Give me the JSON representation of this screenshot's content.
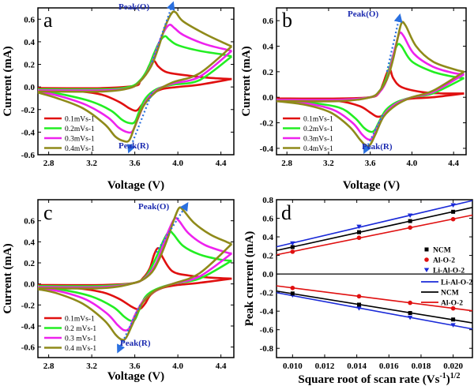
{
  "chart_data": [
    {
      "type": "line",
      "panel_label": "a",
      "xlabel": "Voltage (V)",
      "ylabel": "Current (mA)",
      "xlim": [
        2.7,
        4.52
      ],
      "ylim": [
        -0.6,
        0.7
      ],
      "xticks": [
        "2.8",
        "3.2",
        "3.6",
        "4.0",
        "4.4"
      ],
      "yticks": [
        "-0.6",
        "-0.4",
        "-0.2",
        "0.0",
        "0.2",
        "0.4",
        "0.6"
      ],
      "legend_position": "bottom-left",
      "annotations": [
        "Peak(O)",
        "Peak(R)"
      ],
      "peak_o_arrow": [
        [
          3.76,
          0.22
        ],
        [
          3.95,
          0.73
        ]
      ],
      "peak_r_arrow": [
        [
          3.76,
          -0.05
        ],
        [
          3.55,
          -0.56
        ]
      ],
      "series": [
        {
          "name": "0.1mVs-1",
          "color": "#e01010",
          "ox": [
            2.7,
            3.3,
            3.6,
            3.65,
            3.7,
            3.74,
            3.78,
            3.82,
            3.9,
            4.1,
            4.3,
            4.5
          ],
          "oy": [
            -0.01,
            -0.01,
            0.01,
            0.05,
            0.12,
            0.2,
            0.23,
            0.18,
            0.13,
            0.1,
            0.08,
            0.07
          ],
          "rx": [
            4.5,
            4.2,
            4.0,
            3.85,
            3.75,
            3.68,
            3.63,
            3.6,
            3.55,
            3.45,
            3.3,
            3.1,
            2.7
          ],
          "ry": [
            0.07,
            0.02,
            0.0,
            -0.02,
            -0.07,
            -0.14,
            -0.2,
            -0.21,
            -0.19,
            -0.13,
            -0.07,
            -0.04,
            -0.02
          ]
        },
        {
          "name": "0.2mVs-1",
          "color": "#22ee22",
          "ox": [
            2.7,
            3.3,
            3.55,
            3.65,
            3.72,
            3.78,
            3.83,
            3.88,
            3.92,
            4.0,
            4.2,
            4.4,
            4.5
          ],
          "oy": [
            -0.02,
            -0.02,
            0.0,
            0.06,
            0.16,
            0.3,
            0.4,
            0.45,
            0.42,
            0.37,
            0.32,
            0.29,
            0.27
          ],
          "rx": [
            4.5,
            4.2,
            3.95,
            3.8,
            3.7,
            3.64,
            3.6,
            3.55,
            3.48,
            3.38,
            3.2,
            2.95,
            2.7
          ],
          "ry": [
            0.27,
            0.06,
            0.02,
            -0.02,
            -0.1,
            -0.22,
            -0.31,
            -0.32,
            -0.29,
            -0.21,
            -0.13,
            -0.07,
            -0.03
          ]
        },
        {
          "name": "0.3mVs-1",
          "color": "#ee22ee",
          "ox": [
            2.7,
            3.3,
            3.55,
            3.65,
            3.74,
            3.8,
            3.86,
            3.92,
            3.97,
            4.05,
            4.25,
            4.45,
            4.5
          ],
          "oy": [
            -0.03,
            -0.03,
            -0.01,
            0.05,
            0.17,
            0.32,
            0.47,
            0.55,
            0.52,
            0.46,
            0.38,
            0.33,
            0.32
          ],
          "rx": [
            4.5,
            4.2,
            3.95,
            3.8,
            3.7,
            3.63,
            3.58,
            3.53,
            3.45,
            3.35,
            3.15,
            2.9,
            2.7
          ],
          "ry": [
            0.32,
            0.09,
            0.03,
            -0.03,
            -0.13,
            -0.28,
            -0.39,
            -0.4,
            -0.36,
            -0.27,
            -0.16,
            -0.08,
            -0.04
          ]
        },
        {
          "name": "0.4mVs-1",
          "color": "#8f8a1a",
          "ox": [
            2.7,
            3.3,
            3.55,
            3.65,
            3.75,
            3.82,
            3.88,
            3.94,
            3.98,
            4.05,
            4.25,
            4.45,
            4.5
          ],
          "oy": [
            -0.04,
            -0.04,
            -0.01,
            0.05,
            0.18,
            0.35,
            0.53,
            0.65,
            0.66,
            0.58,
            0.47,
            0.38,
            0.36
          ],
          "rx": [
            4.5,
            4.2,
            3.95,
            3.8,
            3.68,
            3.6,
            3.55,
            3.5,
            3.42,
            3.32,
            3.12,
            2.88,
            2.7
          ],
          "ry": [
            0.36,
            0.12,
            0.04,
            -0.04,
            -0.17,
            -0.35,
            -0.47,
            -0.48,
            -0.44,
            -0.33,
            -0.19,
            -0.1,
            -0.05
          ]
        }
      ]
    },
    {
      "type": "line",
      "panel_label": "b",
      "xlabel": "Voltage (V)",
      "ylabel": "Current (mA)",
      "xlim": [
        2.7,
        4.52
      ],
      "ylim": [
        -0.45,
        0.7
      ],
      "xticks": [
        "2.8",
        "3.2",
        "3.6",
        "4.0",
        "4.4"
      ],
      "yticks": [
        "-0.4",
        "-0.2",
        "0.0",
        "0.2",
        "0.4",
        "0.6"
      ],
      "legend_position": "bottom-left",
      "annotations": [
        "Peak(O)",
        "Peak(R)"
      ],
      "peak_o_arrow": [
        [
          3.76,
          0.2
        ],
        [
          3.88,
          0.63
        ]
      ],
      "peak_r_arrow": [
        [
          3.72,
          -0.14
        ],
        [
          3.55,
          -0.42
        ]
      ],
      "series": [
        {
          "name": "0.1mVs-1",
          "color": "#e01010",
          "ox": [
            2.7,
            3.3,
            3.6,
            3.68,
            3.72,
            3.76,
            3.79,
            3.82,
            3.9,
            4.1,
            4.3,
            4.5
          ],
          "oy": [
            -0.01,
            -0.01,
            0.0,
            0.03,
            0.1,
            0.19,
            0.22,
            0.15,
            0.08,
            0.04,
            0.03,
            0.03
          ],
          "rx": [
            4.5,
            4.2,
            4.0,
            3.88,
            3.8,
            3.74,
            3.7,
            3.66,
            3.6,
            3.5,
            3.3,
            3.0,
            2.7
          ],
          "ry": [
            0.03,
            0.0,
            -0.01,
            -0.03,
            -0.07,
            -0.13,
            -0.15,
            -0.15,
            -0.12,
            -0.07,
            -0.03,
            -0.02,
            -0.01
          ]
        },
        {
          "name": "0.2mVs-1",
          "color": "#22ee22",
          "ox": [
            2.7,
            3.3,
            3.6,
            3.68,
            3.74,
            3.78,
            3.82,
            3.86,
            3.9,
            4.0,
            4.2,
            4.4,
            4.5
          ],
          "oy": [
            -0.02,
            -0.02,
            0.0,
            0.04,
            0.12,
            0.22,
            0.33,
            0.41,
            0.4,
            0.28,
            0.2,
            0.16,
            0.15
          ],
          "rx": [
            4.5,
            4.2,
            4.0,
            3.85,
            3.75,
            3.68,
            3.64,
            3.6,
            3.54,
            3.45,
            3.3,
            3.0,
            2.7
          ],
          "ry": [
            0.15,
            0.03,
            0.0,
            -0.04,
            -0.1,
            -0.2,
            -0.26,
            -0.27,
            -0.24,
            -0.16,
            -0.08,
            -0.04,
            -0.02
          ]
        },
        {
          "name": "0.3mVs-1",
          "color": "#ee22ee",
          "ox": [
            2.7,
            3.3,
            3.6,
            3.7,
            3.76,
            3.8,
            3.84,
            3.88,
            3.92,
            4.02,
            4.2,
            4.4,
            4.5
          ],
          "oy": [
            -0.02,
            -0.02,
            0.0,
            0.05,
            0.14,
            0.26,
            0.39,
            0.5,
            0.48,
            0.34,
            0.24,
            0.19,
            0.18
          ],
          "rx": [
            4.5,
            4.2,
            4.0,
            3.85,
            3.74,
            3.66,
            3.62,
            3.58,
            3.52,
            3.43,
            3.25,
            3.0,
            2.7
          ],
          "ry": [
            0.18,
            0.04,
            0.0,
            -0.05,
            -0.13,
            -0.25,
            -0.32,
            -0.33,
            -0.29,
            -0.2,
            -0.1,
            -0.05,
            -0.03
          ]
        },
        {
          "name": "0.4mVs-1",
          "color": "#8f8a1a",
          "ox": [
            2.7,
            3.3,
            3.6,
            3.7,
            3.77,
            3.82,
            3.86,
            3.9,
            3.94,
            4.04,
            4.2,
            4.4,
            4.5
          ],
          "oy": [
            -0.03,
            -0.03,
            0.0,
            0.06,
            0.16,
            0.3,
            0.45,
            0.58,
            0.56,
            0.4,
            0.28,
            0.22,
            0.2
          ],
          "rx": [
            4.5,
            4.2,
            4.0,
            3.85,
            3.73,
            3.65,
            3.6,
            3.56,
            3.5,
            3.4,
            3.22,
            2.98,
            2.7
          ],
          "ry": [
            0.2,
            0.05,
            0.0,
            -0.06,
            -0.15,
            -0.29,
            -0.37,
            -0.38,
            -0.33,
            -0.23,
            -0.12,
            -0.06,
            -0.03
          ]
        }
      ]
    },
    {
      "type": "line",
      "panel_label": "c",
      "xlabel": "Voltage (V)",
      "ylabel": "Current (mA)",
      "xlim": [
        2.7,
        4.52
      ],
      "ylim": [
        -0.7,
        0.8
      ],
      "xticks": [
        "2.8",
        "3.2",
        "3.6",
        "4.0",
        "4.4"
      ],
      "yticks": [
        "-0.6",
        "-0.4",
        "-0.2",
        "0.0",
        "0.2",
        "0.4",
        "0.6"
      ],
      "legend_position": "bottom-left",
      "annotations": [
        "Peak(O)",
        "Peak(R)"
      ],
      "peak_o_arrow": [
        [
          3.8,
          0.3
        ],
        [
          4.08,
          0.75
        ]
      ],
      "peak_r_arrow": [
        [
          3.65,
          -0.2
        ],
        [
          3.45,
          -0.63
        ]
      ],
      "series": [
        {
          "name": "0.1mVs-1",
          "color": "#e01010",
          "ox": [
            2.7,
            3.3,
            3.6,
            3.68,
            3.74,
            3.78,
            3.82,
            3.86,
            3.95,
            4.1,
            4.3,
            4.5
          ],
          "oy": [
            -0.01,
            -0.01,
            0.01,
            0.06,
            0.15,
            0.28,
            0.34,
            0.25,
            0.12,
            0.08,
            0.06,
            0.05
          ],
          "rx": [
            4.5,
            4.2,
            4.0,
            3.85,
            3.75,
            3.7,
            3.66,
            3.62,
            3.56,
            3.45,
            3.3,
            3.05,
            2.7
          ],
          "ry": [
            0.05,
            0.01,
            -0.01,
            -0.04,
            -0.1,
            -0.18,
            -0.23,
            -0.24,
            -0.21,
            -0.14,
            -0.08,
            -0.04,
            -0.02
          ]
        },
        {
          "name": "0.2 mVs-1",
          "color": "#22ee22",
          "ox": [
            2.7,
            3.3,
            3.6,
            3.7,
            3.76,
            3.82,
            3.87,
            3.92,
            3.96,
            4.05,
            4.2,
            4.4,
            4.5
          ],
          "oy": [
            -0.02,
            -0.02,
            0.01,
            0.07,
            0.17,
            0.3,
            0.42,
            0.5,
            0.47,
            0.36,
            0.28,
            0.23,
            0.22
          ],
          "rx": [
            4.5,
            4.2,
            3.95,
            3.8,
            3.7,
            3.64,
            3.6,
            3.56,
            3.5,
            3.4,
            3.2,
            2.95,
            2.7
          ],
          "ry": [
            0.22,
            0.05,
            0.0,
            -0.05,
            -0.12,
            -0.25,
            -0.34,
            -0.35,
            -0.31,
            -0.22,
            -0.12,
            -0.06,
            -0.03
          ]
        },
        {
          "name": "0.3 mVs-1",
          "color": "#ee22ee",
          "ox": [
            2.7,
            3.3,
            3.6,
            3.72,
            3.8,
            3.86,
            3.92,
            3.97,
            4.01,
            4.1,
            4.25,
            4.45,
            4.5
          ],
          "oy": [
            -0.03,
            -0.03,
            0.01,
            0.08,
            0.2,
            0.36,
            0.52,
            0.62,
            0.6,
            0.48,
            0.37,
            0.3,
            0.29
          ],
          "rx": [
            4.5,
            4.2,
            3.95,
            3.8,
            3.68,
            3.6,
            3.55,
            3.5,
            3.44,
            3.34,
            3.15,
            2.9,
            2.7
          ],
          "ry": [
            0.29,
            0.07,
            0.0,
            -0.06,
            -0.16,
            -0.3,
            -0.42,
            -0.44,
            -0.39,
            -0.28,
            -0.15,
            -0.07,
            -0.04
          ]
        },
        {
          "name": "0.4 mVs-1",
          "color": "#8f8a1a",
          "ox": [
            2.7,
            3.3,
            3.6,
            3.74,
            3.82,
            3.9,
            3.96,
            4.01,
            4.05,
            4.15,
            4.3,
            4.45,
            4.5
          ],
          "oy": [
            -0.04,
            -0.04,
            0.01,
            0.09,
            0.22,
            0.42,
            0.6,
            0.72,
            0.7,
            0.58,
            0.47,
            0.4,
            0.38
          ],
          "rx": [
            4.5,
            4.2,
            3.95,
            3.78,
            3.66,
            3.58,
            3.52,
            3.48,
            3.42,
            3.32,
            3.12,
            2.88,
            2.7
          ],
          "ry": [
            0.38,
            0.1,
            0.0,
            -0.07,
            -0.2,
            -0.38,
            -0.51,
            -0.53,
            -0.48,
            -0.35,
            -0.19,
            -0.09,
            -0.05
          ]
        }
      ]
    },
    {
      "type": "scatter",
      "panel_label": "d",
      "xlabel": "Square root of scan rate (Vs",
      "xlabel_exp": "-1",
      "xlabel_end": ")",
      "xlabel_exp2": "1/2",
      "ylabel": "Peak current (mA)",
      "xlim": [
        0.009,
        0.0212
      ],
      "ylim": [
        -0.9,
        0.8
      ],
      "xticks": [
        "0.010",
        "0.012",
        "0.014",
        "0.016",
        "0.018",
        "0.020"
      ],
      "yticks": [
        "-0.8",
        "-0.6",
        "-0.4",
        "-0.2",
        "0.0",
        "0.2",
        "0.4",
        "0.6",
        "0.8"
      ],
      "x": [
        0.01,
        0.01414,
        0.01732,
        0.02
      ],
      "legend_position": "right",
      "series": [
        {
          "name": "NCM",
          "color": "#000000",
          "marker": "square",
          "y": [
            0.29,
            0.45,
            0.57,
            0.67
          ]
        },
        {
          "name": "Al-O-2",
          "color": "#e01010",
          "marker": "circle",
          "y": [
            0.24,
            0.39,
            0.5,
            0.59
          ]
        },
        {
          "name": "Li-Al-O-2",
          "color": "#1a2ad8",
          "marker": "triangle-down",
          "y": [
            0.33,
            0.51,
            0.63,
            0.74
          ]
        },
        {
          "name": "Li-Al-O-2",
          "color": "#1a2ad8",
          "marker": "triangle-down",
          "y": [
            -0.23,
            -0.37,
            -0.47,
            -0.55
          ]
        },
        {
          "name": "NCM",
          "color": "#000000",
          "marker": "square",
          "y": [
            -0.21,
            -0.33,
            -0.42,
            -0.49
          ]
        },
        {
          "name": "Al-O-2",
          "color": "#e01010",
          "marker": "circle",
          "y": [
            -0.15,
            -0.24,
            -0.31,
            -0.37
          ]
        }
      ],
      "legend_top": [
        "NCM",
        "Al-O-2",
        "Li-Al-O-2"
      ],
      "legend_bottom": [
        "Li-Al-O-2",
        "NCM",
        "Al-O-2"
      ]
    }
  ]
}
